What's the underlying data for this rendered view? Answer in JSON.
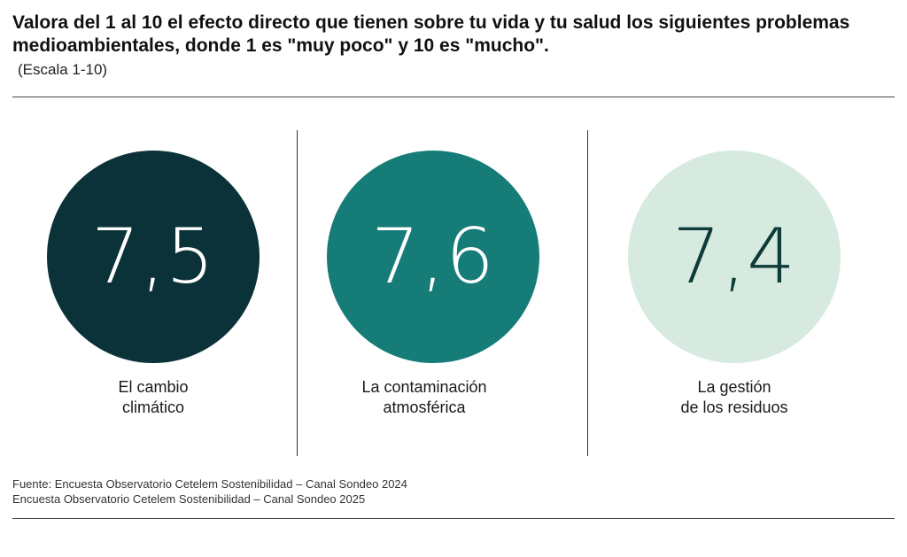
{
  "title": "Valora del 1 al 10 el efecto directo que tienen sobre tu vida y tu salud los siguientes problemas\nmedioambientales, donde 1 es \"muy poco\" y 10 es \"mucho\".",
  "subtitle": "(Escala 1-10)",
  "chart_data": {
    "type": "bar",
    "title": "Valora del 1 al 10 el efecto directo que tienen sobre tu vida y tu salud los siguientes problemas medioambientales, donde 1 es \"muy poco\" y 10 es \"mucho\".",
    "subtitle": "(Escala 1-10)",
    "categories": [
      "El cambio\nclimático",
      "La contaminación\natmosférica",
      "La gestión\nde los residuos"
    ],
    "values": [
      7.5,
      7.6,
      7.4
    ],
    "value_labels": [
      "7,5",
      "7,6",
      "7,4"
    ],
    "colors": [
      "#0b3238",
      "#167c78",
      "#d6eadf"
    ],
    "value_text_colors": [
      "#ffffff",
      "#ffffff",
      "#0e3b3a"
    ],
    "ylim": [
      1,
      10
    ]
  },
  "items": [
    {
      "value": "7,5",
      "label": "El cambio\nclimático"
    },
    {
      "value": "7,6",
      "label": "La contaminación\natmosférica"
    },
    {
      "value": "7,4",
      "label": "La gestión\nde los residuos"
    }
  ],
  "source": {
    "line1": "Fuente: Encuesta Observatorio Cetelem Sostenibilidad – Canal Sondeo 2024",
    "line2": "Encuesta Observatorio Cetelem Sostenibilidad – Canal Sondeo 2025"
  }
}
